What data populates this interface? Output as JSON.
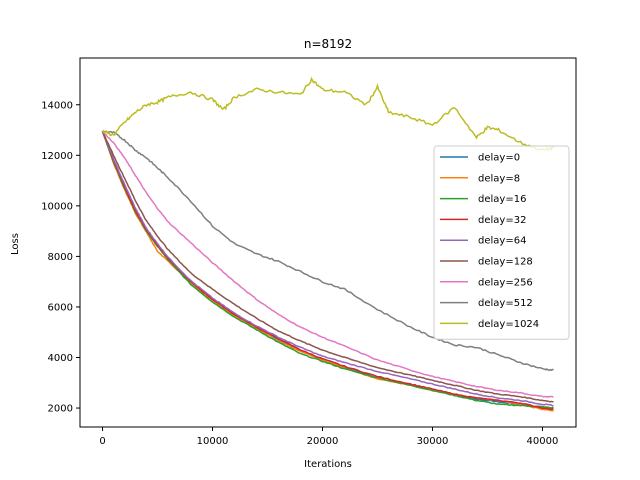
{
  "chart_data": {
    "type": "line",
    "title": "n=8192",
    "xlabel": "Iterations",
    "ylabel": "Loss",
    "xlim": [
      -2050,
      43050
    ],
    "ylim": [
      1250,
      15850
    ],
    "xticks": [
      0,
      10000,
      20000,
      30000,
      40000
    ],
    "xtick_labels": [
      "0",
      "10000",
      "20000",
      "30000",
      "40000"
    ],
    "yticks": [
      2000,
      4000,
      6000,
      8000,
      10000,
      12000,
      14000
    ],
    "ytick_labels": [
      "2000",
      "4000",
      "6000",
      "8000",
      "10000",
      "12000",
      "14000"
    ],
    "grid": false,
    "legend": "center-right",
    "series": [
      {
        "name": "delay=0",
        "color": "#1f77b4",
        "x": [
          0,
          1000,
          2000,
          3000,
          4000,
          5000,
          6000,
          8000,
          10000,
          12000,
          14000,
          16000,
          18000,
          20000,
          22000,
          25000,
          28000,
          30000,
          32000,
          34000,
          36000,
          38000,
          40000,
          41000
        ],
        "y": [
          12950,
          11800,
          10800,
          9800,
          9000,
          8400,
          7900,
          7000,
          6300,
          5700,
          5200,
          4700,
          4300,
          3900,
          3600,
          3200,
          2900,
          2700,
          2500,
          2350,
          2250,
          2150,
          2000,
          1950
        ]
      },
      {
        "name": "delay=8",
        "color": "#ff7f0e",
        "x": [
          0,
          1000,
          2000,
          3000,
          4000,
          5000,
          6000,
          8000,
          10000,
          12000,
          14000,
          16000,
          18000,
          20000,
          22000,
          25000,
          28000,
          30000,
          32000,
          34000,
          36000,
          38000,
          40000,
          41000
        ],
        "y": [
          12950,
          11700,
          10650,
          9700,
          8950,
          8200,
          7800,
          6950,
          6250,
          5650,
          5150,
          4650,
          4250,
          3900,
          3600,
          3150,
          2900,
          2700,
          2550,
          2400,
          2300,
          2150,
          1950,
          1900
        ]
      },
      {
        "name": "delay=16",
        "color": "#2ca02c",
        "x": [
          0,
          1000,
          2000,
          3000,
          4000,
          5000,
          6000,
          8000,
          10000,
          12000,
          14000,
          16000,
          18000,
          20000,
          22000,
          25000,
          28000,
          30000,
          32000,
          34000,
          36000,
          38000,
          40000,
          41000
        ],
        "y": [
          12950,
          11750,
          10700,
          9750,
          9000,
          8400,
          7850,
          6900,
          6200,
          5600,
          5100,
          4600,
          4150,
          3850,
          3550,
          3200,
          2900,
          2700,
          2500,
          2300,
          2150,
          2100,
          2050,
          2000
        ]
      },
      {
        "name": "delay=32",
        "color": "#d62728",
        "x": [
          0,
          1000,
          2000,
          3000,
          4000,
          5000,
          6000,
          8000,
          10000,
          12000,
          14000,
          16000,
          18000,
          20000,
          22000,
          25000,
          28000,
          30000,
          32000,
          34000,
          36000,
          38000,
          40000,
          41000
        ],
        "y": [
          12950,
          11800,
          10750,
          9800,
          9050,
          8450,
          7900,
          7000,
          6300,
          5700,
          5200,
          4750,
          4300,
          3950,
          3650,
          3250,
          2950,
          2750,
          2550,
          2400,
          2300,
          2200,
          2000,
          1950
        ]
      },
      {
        "name": "delay=64",
        "color": "#9467bd",
        "x": [
          0,
          1000,
          2000,
          3000,
          4000,
          5000,
          6000,
          8000,
          10000,
          12000,
          14000,
          16000,
          18000,
          20000,
          22000,
          25000,
          28000,
          30000,
          32000,
          34000,
          36000,
          38000,
          40000,
          41000
        ],
        "y": [
          12950,
          11850,
          10850,
          9900,
          9100,
          8500,
          7950,
          7050,
          6350,
          5750,
          5250,
          4800,
          4400,
          4050,
          3800,
          3450,
          3150,
          2950,
          2750,
          2550,
          2400,
          2300,
          2150,
          2100
        ]
      },
      {
        "name": "delay=128",
        "color": "#8c564b",
        "x": [
          0,
          1000,
          2000,
          3000,
          4000,
          5000,
          6000,
          8000,
          10000,
          12000,
          14000,
          16000,
          18000,
          20000,
          22000,
          25000,
          28000,
          30000,
          32000,
          34000,
          36000,
          38000,
          40000,
          41000
        ],
        "y": [
          12950,
          12000,
          11100,
          10200,
          9400,
          8800,
          8250,
          7350,
          6700,
          6100,
          5550,
          5050,
          4650,
          4300,
          4000,
          3600,
          3300,
          3100,
          2900,
          2700,
          2550,
          2450,
          2300,
          2250
        ]
      },
      {
        "name": "delay=256",
        "color": "#e377c2",
        "x": [
          0,
          1000,
          2000,
          3000,
          4000,
          5000,
          6000,
          8000,
          10000,
          12000,
          14000,
          16000,
          18000,
          20000,
          22000,
          25000,
          28000,
          30000,
          32000,
          34000,
          36000,
          38000,
          40000,
          41000
        ],
        "y": [
          12950,
          12500,
          11900,
          11200,
          10500,
          9900,
          9350,
          8550,
          7750,
          7000,
          6300,
          5700,
          5200,
          4800,
          4450,
          3900,
          3500,
          3250,
          3050,
          2850,
          2700,
          2600,
          2450,
          2450
        ]
      },
      {
        "name": "delay=512",
        "color": "#7f7f7f",
        "x": [
          0,
          1000,
          2000,
          3000,
          4000,
          5000,
          6000,
          8000,
          10000,
          12000,
          14000,
          16000,
          18000,
          20000,
          22000,
          25000,
          28000,
          30000,
          32000,
          34000,
          36000,
          38000,
          40000,
          41000
        ],
        "y": [
          12950,
          12900,
          12600,
          12200,
          11900,
          11500,
          11100,
          10200,
          9200,
          8500,
          8100,
          7800,
          7400,
          7000,
          6700,
          5900,
          5200,
          4800,
          4500,
          4400,
          4100,
          3800,
          3550,
          3500
        ]
      },
      {
        "name": "delay=1024",
        "color": "#bcbd22",
        "x": [
          0,
          1000,
          2000,
          3000,
          4000,
          5000,
          6000,
          8000,
          10000,
          11000,
          12000,
          14000,
          16000,
          18000,
          19000,
          20000,
          22000,
          24000,
          25000,
          26000,
          28000,
          30000,
          32000,
          34000,
          35000,
          36000,
          38000,
          40000,
          41000
        ],
        "y": [
          12950,
          12800,
          13300,
          13700,
          14000,
          14100,
          14300,
          14500,
          14200,
          13800,
          14300,
          14600,
          14500,
          14400,
          15000,
          14600,
          14500,
          14000,
          14700,
          13700,
          13500,
          13200,
          13900,
          12700,
          13100,
          13000,
          12500,
          12200,
          12300
        ]
      }
    ]
  }
}
